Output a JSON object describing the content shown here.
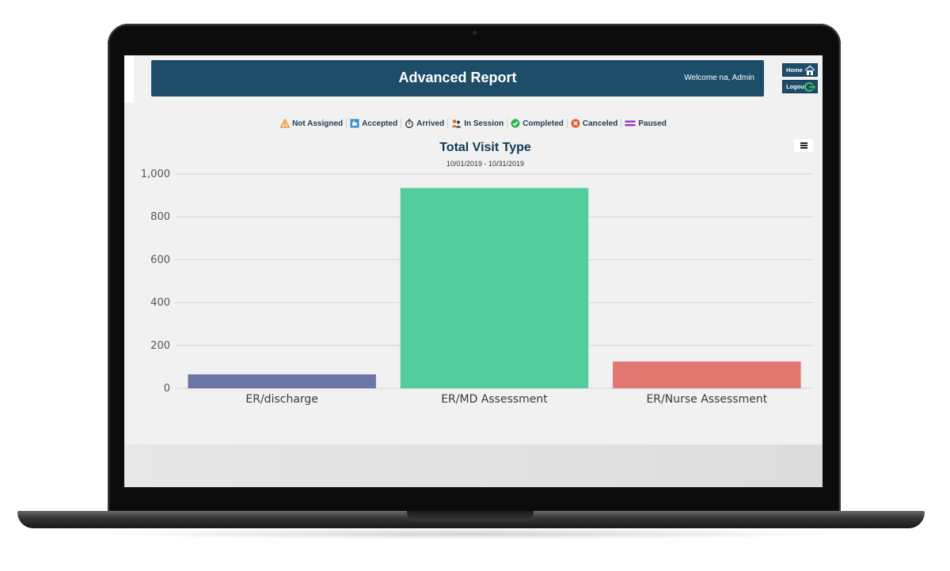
{
  "app": {
    "title": "Advanced Report",
    "welcome": "Welcome na, Admin"
  },
  "nav": {
    "home_label": "Home",
    "logout_label": "Logout"
  },
  "legend": [
    {
      "label": "Not Assigned",
      "icon": "warning-icon",
      "color": "#f08c28"
    },
    {
      "label": "Accepted",
      "icon": "thumbs-up-icon",
      "color": "#3a8fd0"
    },
    {
      "label": "Arrived",
      "icon": "stopwatch-icon",
      "color": "#333333"
    },
    {
      "label": "In Session",
      "icon": "users-icon",
      "color": "#c0702a"
    },
    {
      "label": "Completed",
      "icon": "check-circle-icon",
      "color": "#2fb24a"
    },
    {
      "label": "Canceled",
      "icon": "x-circle-icon",
      "color": "#e65a2c"
    },
    {
      "label": "Paused",
      "icon": "pause-icon",
      "color": "#9b30c8"
    }
  ],
  "chart_data": {
    "type": "bar",
    "title": "Total Visit Type",
    "subtitle": "10/01/2019 - 10/31/2019",
    "categories": [
      "ER/discharge",
      "ER/MD Assessment",
      "ER/Nurse Assessment"
    ],
    "values": [
      65,
      935,
      125
    ],
    "colors": [
      "#6b75a8",
      "#52ce9d",
      "#e07770"
    ],
    "ylim": [
      0,
      1000
    ],
    "yticks": [
      0,
      200,
      400,
      600,
      800,
      1000
    ],
    "ytick_labels": [
      "0",
      "200",
      "400",
      "600",
      "800",
      "1,000"
    ],
    "xlabel": "",
    "ylabel": "",
    "grid": true,
    "legend": "none"
  },
  "colors": {
    "header_bg": "#1e4d6a",
    "screen_bg": "#f1f1f1",
    "gridline": "#d4d4d4"
  }
}
